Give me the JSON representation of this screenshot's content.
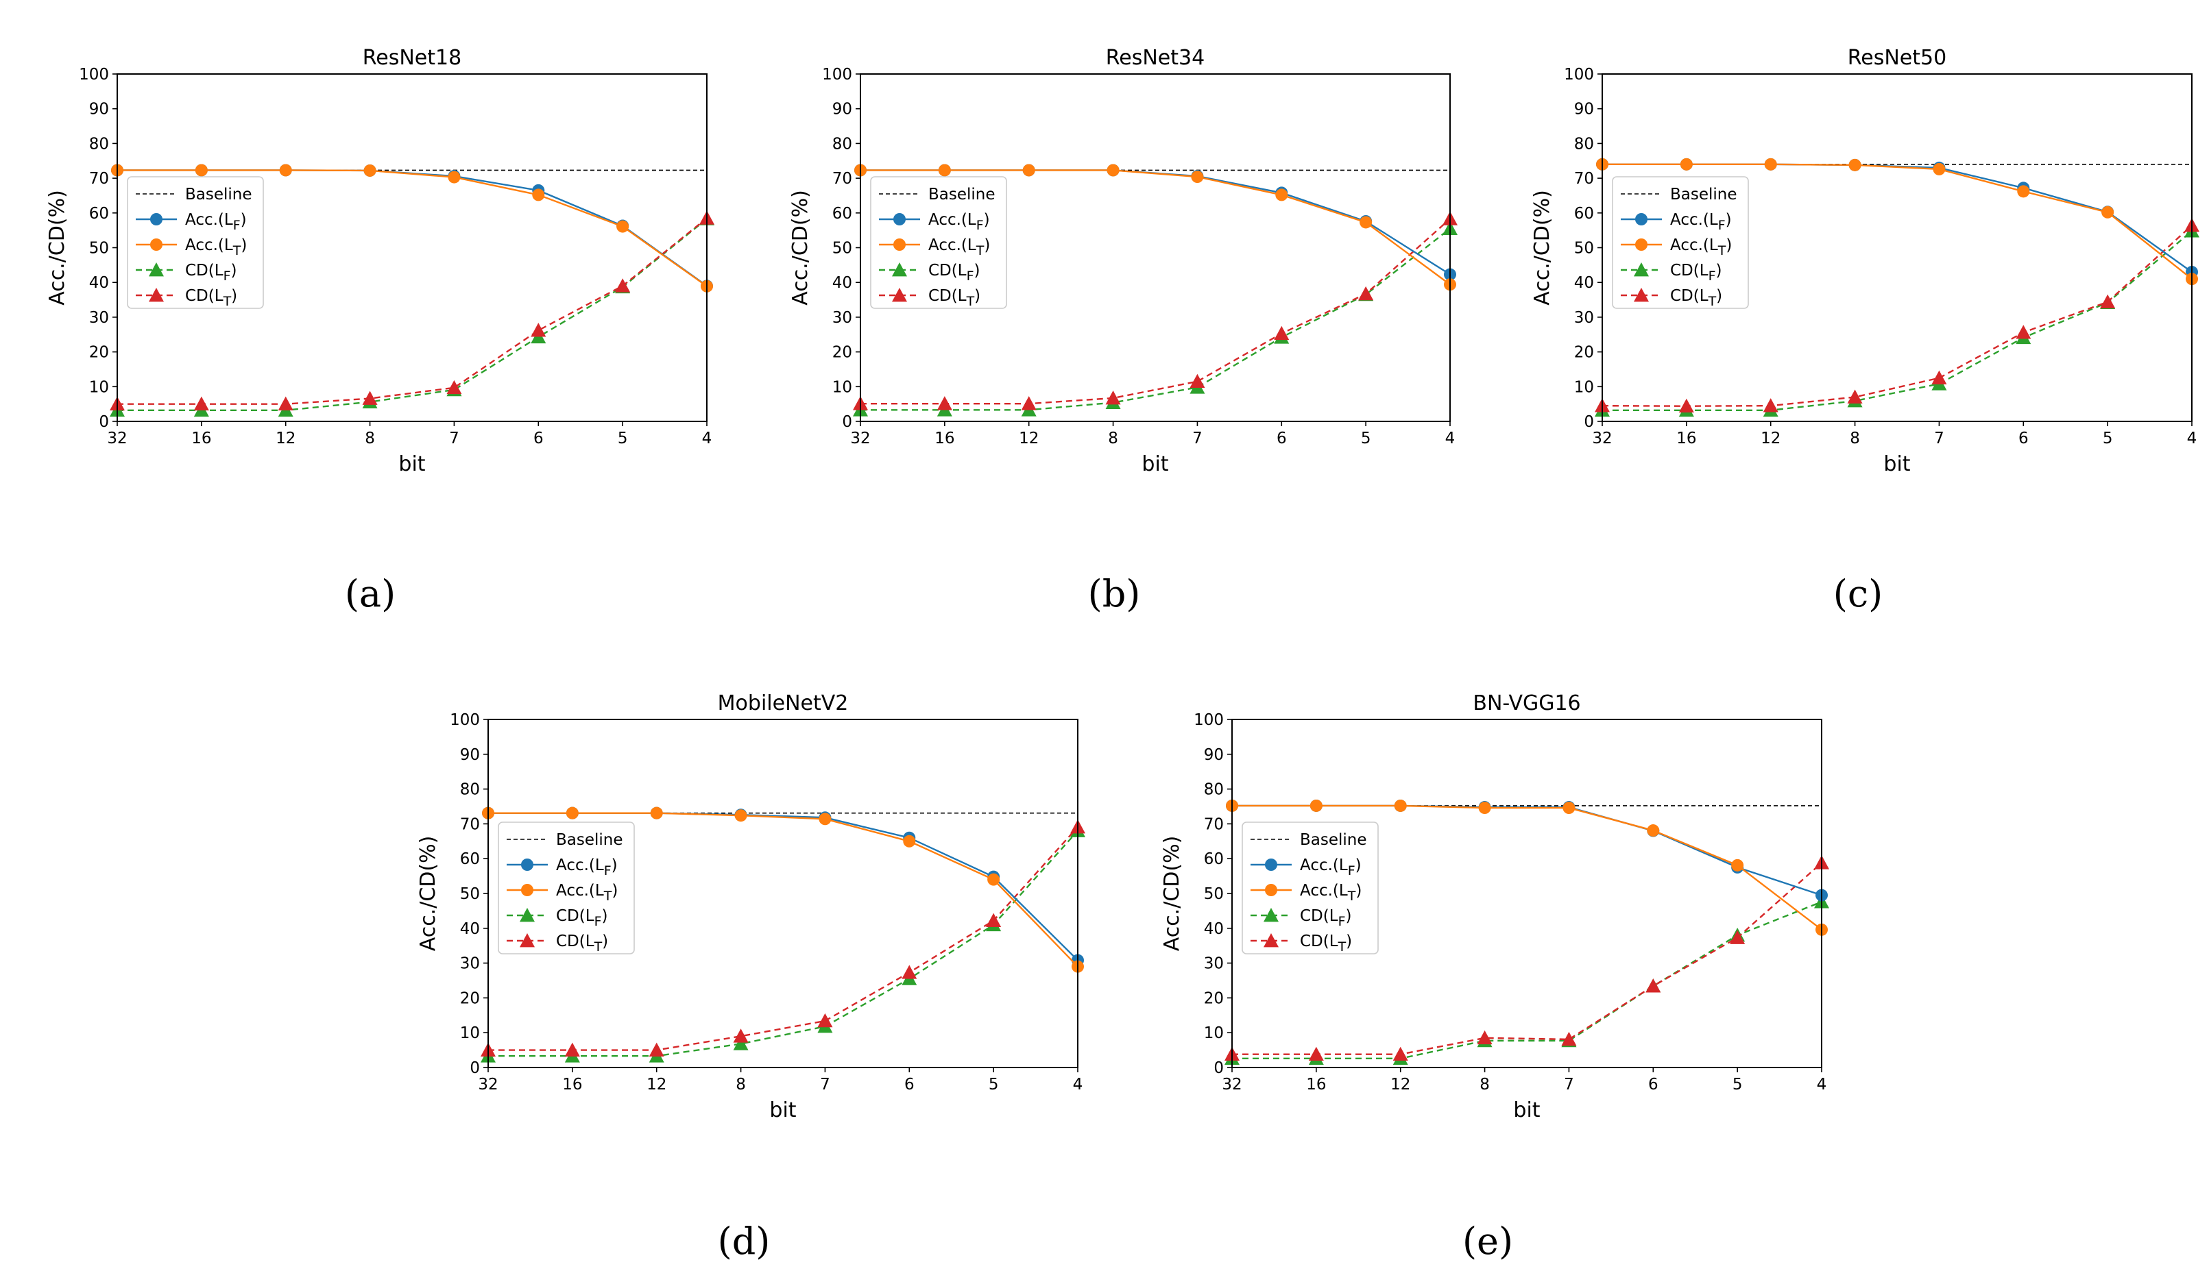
{
  "figure": {
    "legend_labels": {
      "baseline": "Baseline",
      "acc_lf": "Acc.(L_F)",
      "acc_lt": "Acc.(L_T)",
      "cd_lf": "CD(L_F)",
      "cd_lt": "CD(L_T)"
    },
    "colors": {
      "acc_lf": "#1f77b4",
      "acc_lt": "#ff7f0e",
      "cd_lf": "#2ca02c",
      "cd_lt": "#d62728",
      "baseline": "#000000"
    }
  },
  "chart_data": [
    {
      "type": "line",
      "title": "ResNet18",
      "caption": "(a)",
      "xlabel": "bit",
      "ylabel": "Acc./CD(%)",
      "categories": [
        "32",
        "16",
        "12",
        "8",
        "7",
        "6",
        "5",
        "4"
      ],
      "ylim": [
        0,
        100
      ],
      "yticks": [
        0,
        10,
        20,
        30,
        40,
        50,
        60,
        70,
        80,
        90,
        100
      ],
      "baseline": 72.3,
      "legend": "center-left",
      "series": [
        {
          "name": "Acc.(L_F)",
          "values": [
            72.3,
            72.3,
            72.3,
            72.2,
            70.6,
            66.5,
            56.3,
            39.0
          ]
        },
        {
          "name": "Acc.(L_T)",
          "values": [
            72.3,
            72.3,
            72.3,
            72.2,
            70.3,
            65.2,
            56.1,
            38.9
          ]
        },
        {
          "name": "CD(L_F)",
          "values": [
            3.2,
            3.2,
            3.2,
            5.6,
            9.1,
            24.3,
            38.7,
            58.3
          ]
        },
        {
          "name": "CD(L_T)",
          "values": [
            5.0,
            5.0,
            5.0,
            6.6,
            9.7,
            26.2,
            39.0,
            58.5
          ]
        }
      ]
    },
    {
      "type": "line",
      "title": "ResNet34",
      "caption": "(b)",
      "xlabel": "bit",
      "ylabel": "Acc./CD(%)",
      "categories": [
        "32",
        "16",
        "12",
        "8",
        "7",
        "6",
        "5",
        "4"
      ],
      "ylim": [
        0,
        100
      ],
      "yticks": [
        0,
        10,
        20,
        30,
        40,
        50,
        60,
        70,
        80,
        90,
        100
      ],
      "baseline": 72.3,
      "legend": "center-left",
      "series": [
        {
          "name": "Acc.(L_F)",
          "values": [
            72.3,
            72.3,
            72.3,
            72.3,
            70.6,
            65.8,
            57.6,
            42.3
          ]
        },
        {
          "name": "Acc.(L_T)",
          "values": [
            72.3,
            72.3,
            72.3,
            72.3,
            70.4,
            65.2,
            57.3,
            39.4
          ]
        },
        {
          "name": "CD(L_F)",
          "values": [
            3.3,
            3.3,
            3.3,
            5.4,
            9.8,
            24.2,
            36.5,
            55.5
          ]
        },
        {
          "name": "CD(L_T)",
          "values": [
            5.1,
            5.1,
            5.1,
            6.7,
            11.5,
            25.3,
            36.7,
            58.3
          ]
        }
      ]
    },
    {
      "type": "line",
      "title": "ResNet50",
      "caption": "(c)",
      "xlabel": "bit",
      "ylabel": "Acc./CD(%)",
      "categories": [
        "32",
        "16",
        "12",
        "8",
        "7",
        "6",
        "5",
        "4"
      ],
      "ylim": [
        0,
        100
      ],
      "yticks": [
        0,
        10,
        20,
        30,
        40,
        50,
        60,
        70,
        80,
        90,
        100
      ],
      "baseline": 74.0,
      "legend": "center-left",
      "series": [
        {
          "name": "Acc.(L_F)",
          "values": [
            74.0,
            74.0,
            74.0,
            73.8,
            73.0,
            67.2,
            60.3,
            43.0
          ]
        },
        {
          "name": "Acc.(L_T)",
          "values": [
            74.0,
            74.0,
            74.0,
            73.8,
            72.6,
            66.2,
            60.2,
            41.0
          ]
        },
        {
          "name": "CD(L_F)",
          "values": [
            3.2,
            3.2,
            3.2,
            5.9,
            10.8,
            24.1,
            34.2,
            54.8
          ]
        },
        {
          "name": "CD(L_T)",
          "values": [
            4.5,
            4.4,
            4.5,
            7.0,
            12.5,
            25.6,
            34.4,
            56.4
          ]
        }
      ]
    },
    {
      "type": "line",
      "title": "MobileNetV2",
      "caption": "(d)",
      "xlabel": "bit",
      "ylabel": "Acc./CD(%)",
      "categories": [
        "32",
        "16",
        "12",
        "8",
        "7",
        "6",
        "5",
        "4"
      ],
      "ylim": [
        0,
        100
      ],
      "yticks": [
        0,
        10,
        20,
        30,
        40,
        50,
        60,
        70,
        80,
        90,
        100
      ],
      "baseline": 73.1,
      "legend": "center-left",
      "series": [
        {
          "name": "Acc.(L_F)",
          "values": [
            73.1,
            73.1,
            73.1,
            72.6,
            71.8,
            66.0,
            54.8,
            30.8
          ]
        },
        {
          "name": "Acc.(L_T)",
          "values": [
            73.1,
            73.1,
            73.1,
            72.4,
            71.4,
            65.0,
            54.0,
            29.0
          ]
        },
        {
          "name": "CD(L_F)",
          "values": [
            3.3,
            3.3,
            3.3,
            6.8,
            11.8,
            25.5,
            41.0,
            68.0
          ]
        },
        {
          "name": "CD(L_T)",
          "values": [
            5.0,
            5.0,
            5.0,
            9.0,
            13.4,
            27.3,
            42.2,
            69.1
          ]
        }
      ]
    },
    {
      "type": "line",
      "title": "BN-VGG16",
      "caption": "(e)",
      "xlabel": "bit",
      "ylabel": "Acc./CD(%)",
      "categories": [
        "32",
        "16",
        "12",
        "8",
        "7",
        "6",
        "5",
        "4"
      ],
      "ylim": [
        0,
        100
      ],
      "yticks": [
        0,
        10,
        20,
        30,
        40,
        50,
        60,
        70,
        80,
        90,
        100
      ],
      "baseline": 75.2,
      "legend": "center-left",
      "series": [
        {
          "name": "Acc.(L_F)",
          "values": [
            75.2,
            75.2,
            75.2,
            74.8,
            74.8,
            68.0,
            57.5,
            49.5
          ]
        },
        {
          "name": "Acc.(L_T)",
          "values": [
            75.2,
            75.2,
            75.2,
            74.6,
            74.6,
            68.1,
            58.1,
            39.6
          ]
        },
        {
          "name": "CD(L_F)",
          "values": [
            2.6,
            2.6,
            2.6,
            7.7,
            7.7,
            23.4,
            38.0,
            47.6
          ]
        },
        {
          "name": "CD(L_T)",
          "values": [
            3.8,
            3.8,
            3.8,
            8.5,
            8.1,
            23.4,
            37.3,
            58.8
          ]
        }
      ]
    }
  ]
}
